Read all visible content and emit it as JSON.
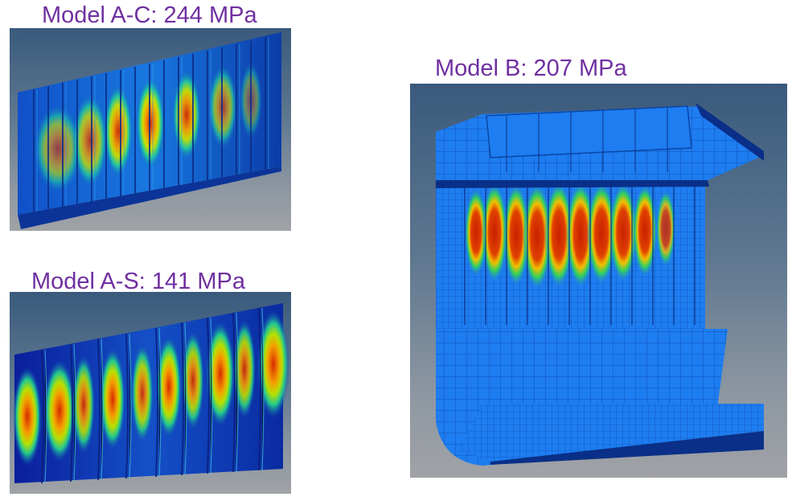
{
  "figures": [
    {
      "id": "ac",
      "label": "Model A-C: 244 MPa"
    },
    {
      "id": "as",
      "label": "Model A-S: 141 MPa"
    },
    {
      "id": "b",
      "label": "Model B: 207 MPa"
    }
  ],
  "colors": {
    "title": "#7030a0",
    "background_top": "#3a5a7c",
    "background_bottom": "#a0a2a6",
    "mesh_blue": "#1e7df0",
    "stress_low": "#0a2fa8",
    "stress_high": "#d82800"
  },
  "legend_scale": [
    "blue-low",
    "cyan",
    "green",
    "yellow",
    "red-high"
  ]
}
